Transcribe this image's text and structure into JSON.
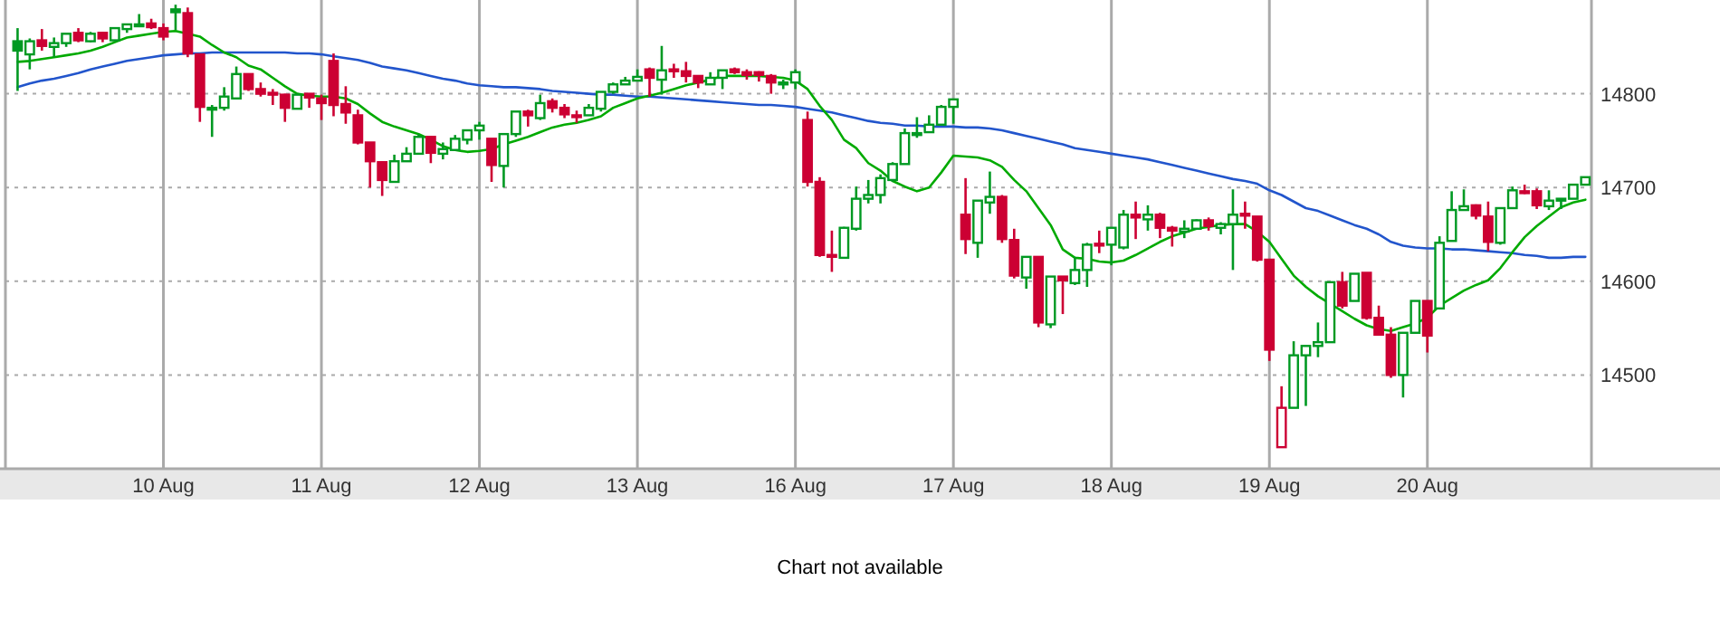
{
  "chart_data": {
    "type": "candlestick",
    "categories": [
      null,
      null,
      null,
      null,
      null,
      null,
      null,
      null,
      null,
      null,
      null,
      null,
      "10 Aug",
      null,
      null,
      null,
      null,
      null,
      null,
      null,
      null,
      null,
      null,
      null,
      null,
      "11 Aug",
      null,
      null,
      null,
      null,
      null,
      null,
      null,
      null,
      null,
      null,
      null,
      null,
      "12 Aug",
      null,
      null,
      null,
      null,
      null,
      null,
      null,
      null,
      null,
      null,
      null,
      null,
      "13 Aug",
      null,
      null,
      null,
      null,
      null,
      null,
      null,
      null,
      null,
      null,
      null,
      null,
      "16 Aug",
      null,
      null,
      null,
      null,
      null,
      null,
      null,
      null,
      null,
      null,
      null,
      null,
      "17 Aug",
      null,
      null,
      null,
      null,
      null,
      null,
      null,
      null,
      null,
      null,
      null,
      null,
      "18 Aug",
      null,
      null,
      null,
      null,
      null,
      null,
      null,
      null,
      null,
      null,
      null,
      null,
      "19 Aug",
      null,
      null,
      null,
      null,
      null,
      null,
      null,
      null,
      null,
      null,
      null,
      null,
      "20 Aug",
      null,
      null,
      null,
      null,
      null,
      null,
      null,
      null,
      null,
      null,
      null,
      null,
      null
    ],
    "ohlc": [
      [
        14856,
        14870,
        14803,
        14846
      ],
      [
        14842,
        14859,
        14826,
        14856
      ],
      [
        14857,
        14869,
        14846,
        14851
      ],
      [
        14850,
        14860,
        14839,
        14854
      ],
      [
        14854,
        14864,
        14850,
        14864
      ],
      [
        14865,
        14870,
        14855,
        14857
      ],
      [
        14856,
        14866,
        14855,
        14864
      ],
      [
        14865,
        14866,
        14855,
        14859
      ],
      [
        14857,
        14870,
        14856,
        14870
      ],
      [
        14869,
        14874,
        14865,
        14874
      ],
      [
        14872,
        14885,
        14871,
        14874
      ],
      [
        14875,
        14880,
        14869,
        14871
      ],
      [
        14870,
        14875,
        14857,
        14861
      ],
      [
        14890,
        14895,
        14868,
        14887
      ],
      [
        14886,
        14892,
        14839,
        14843
      ],
      [
        14842,
        14842,
        14770,
        14786
      ],
      [
        14784,
        14788,
        14754,
        14785
      ],
      [
        14785,
        14807,
        14782,
        14797
      ],
      [
        14795,
        14829,
        14795,
        14821
      ],
      [
        14821,
        14821,
        14803,
        14805
      ],
      [
        14805,
        14812,
        14797,
        14800
      ],
      [
        14801,
        14805,
        14788,
        14799
      ],
      [
        14799,
        14800,
        14770,
        14785
      ],
      [
        14784,
        14800,
        14784,
        14799
      ],
      [
        14800,
        14800,
        14785,
        14796
      ],
      [
        14795,
        14799,
        14772,
        14790
      ],
      [
        14835,
        14843,
        14776,
        14788
      ],
      [
        14789,
        14808,
        14768,
        14780
      ],
      [
        14777,
        14783,
        14746,
        14748
      ],
      [
        14748,
        14748,
        14700,
        14728
      ],
      [
        14727,
        14728,
        14691,
        14708
      ],
      [
        14706,
        14735,
        14705,
        14728
      ],
      [
        14728,
        14743,
        14728,
        14736
      ],
      [
        14736,
        14757,
        14736,
        14754
      ],
      [
        14754,
        14755,
        14726,
        14737
      ],
      [
        14736,
        14748,
        14730,
        14741
      ],
      [
        14740,
        14756,
        14740,
        14752
      ],
      [
        14751,
        14761,
        14746,
        14761
      ],
      [
        14761,
        14770,
        14751,
        14766
      ],
      [
        14752,
        14752,
        14706,
        14724
      ],
      [
        14723,
        14757,
        14700,
        14757
      ],
      [
        14757,
        14781,
        14754,
        14781
      ],
      [
        14781,
        14783,
        14765,
        14777
      ],
      [
        14774,
        14799,
        14772,
        14790
      ],
      [
        14792,
        14795,
        14780,
        14785
      ],
      [
        14785,
        14789,
        14774,
        14778
      ],
      [
        14777,
        14782,
        14769,
        14776
      ],
      [
        14777,
        14789,
        14777,
        14785
      ],
      [
        14784,
        14802,
        14781,
        14802
      ],
      [
        14802,
        14812,
        14800,
        14810
      ],
      [
        14810,
        14818,
        14810,
        14814
      ],
      [
        14814,
        14826,
        14814,
        14818
      ],
      [
        14826,
        14828,
        14797,
        14817
      ],
      [
        14815,
        14851,
        14799,
        14825
      ],
      [
        14826,
        14832,
        14817,
        14824
      ],
      [
        14824,
        14834,
        14812,
        14819
      ],
      [
        14819,
        14819,
        14806,
        14812
      ],
      [
        14810,
        14823,
        14810,
        14817
      ],
      [
        14817,
        14825,
        14805,
        14825
      ],
      [
        14826,
        14828,
        14821,
        14823
      ],
      [
        14823,
        14826,
        14815,
        14820
      ],
      [
        14823,
        14824,
        14813,
        14820
      ],
      [
        14819,
        14821,
        14800,
        14812
      ],
      [
        14810,
        14815,
        14805,
        14812
      ],
      [
        14812,
        14826,
        14805,
        14823
      ],
      [
        14772,
        14781,
        14701,
        14706
      ],
      [
        14706,
        14711,
        14626,
        14628
      ],
      [
        14628,
        14654,
        14610,
        14627
      ],
      [
        14625,
        14658,
        14625,
        14657
      ],
      [
        14656,
        14701,
        14654,
        14688
      ],
      [
        14688,
        14708,
        14683,
        14692
      ],
      [
        14692,
        14714,
        14683,
        14710
      ],
      [
        14708,
        14727,
        14706,
        14725
      ],
      [
        14725,
        14763,
        14725,
        14758
      ],
      [
        14756,
        14775,
        14753,
        14758
      ],
      [
        14759,
        14777,
        14759,
        14767
      ],
      [
        14767,
        14788,
        14767,
        14786
      ],
      [
        14786,
        14794,
        14768,
        14794
      ],
      [
        14671,
        14710,
        14629,
        14645
      ],
      [
        14641,
        14686,
        14625,
        14686
      ],
      [
        14684,
        14717,
        14672,
        14690
      ],
      [
        14690,
        14692,
        14641,
        14645
      ],
      [
        14644,
        14656,
        14603,
        14606
      ],
      [
        14604,
        14626,
        14592,
        14626
      ],
      [
        14626,
        14626,
        14551,
        14556
      ],
      [
        14554,
        14605,
        14550,
        14605
      ],
      [
        14605,
        14605,
        14565,
        14601
      ],
      [
        14598,
        14626,
        14596,
        14612
      ],
      [
        14612,
        14641,
        14594,
        14639
      ],
      [
        14640,
        14654,
        14630,
        14639
      ],
      [
        14639,
        14657,
        14617,
        14657
      ],
      [
        14636,
        14676,
        14634,
        14671
      ],
      [
        14671,
        14685,
        14645,
        14668
      ],
      [
        14666,
        14681,
        14654,
        14671
      ],
      [
        14671,
        14673,
        14646,
        14657
      ],
      [
        14657,
        14659,
        14637,
        14654
      ],
      [
        14653,
        14665,
        14646,
        14656
      ],
      [
        14656,
        14666,
        14655,
        14665
      ],
      [
        14665,
        14668,
        14654,
        14659
      ],
      [
        14657,
        14663,
        14650,
        14661
      ],
      [
        14661,
        14698,
        14612,
        14671
      ],
      [
        14672,
        14685,
        14656,
        14670
      ],
      [
        14669,
        14669,
        14621,
        14623
      ],
      [
        14623,
        14623,
        14515,
        14527
      ],
      [
        14423,
        14488,
        14423,
        14465
      ],
      [
        14465,
        14536,
        14465,
        14521
      ],
      [
        14521,
        14531,
        14467,
        14531
      ],
      [
        14531,
        14556,
        14519,
        14535
      ],
      [
        14535,
        14599,
        14535,
        14599
      ],
      [
        14599,
        14610,
        14571,
        14574
      ],
      [
        14579,
        14608,
        14579,
        14608
      ],
      [
        14609,
        14609,
        14559,
        14561
      ],
      [
        14561,
        14574,
        14542,
        14543
      ],
      [
        14543,
        14551,
        14497,
        14500
      ],
      [
        14500,
        14545,
        14476,
        14545
      ],
      [
        14545,
        14579,
        14545,
        14579
      ],
      [
        14579,
        14579,
        14524,
        14542
      ],
      [
        14571,
        14648,
        14571,
        14641
      ],
      [
        14643,
        14696,
        14643,
        14676
      ],
      [
        14676,
        14698,
        14676,
        14680
      ],
      [
        14681,
        14682,
        14666,
        14670
      ],
      [
        14669,
        14685,
        14632,
        14642
      ],
      [
        14641,
        14678,
        14639,
        14678
      ],
      [
        14678,
        14701,
        14678,
        14697
      ],
      [
        14696,
        14703,
        14693,
        14694
      ],
      [
        14696,
        14699,
        14677,
        14681
      ],
      [
        14680,
        14697,
        14676,
        14686
      ],
      [
        14688,
        14688,
        14677,
        14686
      ],
      [
        14688,
        14703,
        14688,
        14703
      ],
      [
        14703,
        14711,
        14703,
        14711
      ]
    ],
    "colors": [
      "#009922",
      "#009922",
      "#cc0033",
      "#009922",
      "#009922",
      "#cc0033",
      "#009922",
      "#cc0033",
      "#009922",
      "#009922",
      "#009922",
      "#cc0033",
      "#cc0033",
      "#009922",
      "#cc0033",
      "#cc0033",
      "#009922",
      "#009922",
      "#009922",
      "#cc0033",
      "#cc0033",
      "#cc0033",
      "#cc0033",
      "#009922",
      "#cc0033",
      "#cc0033",
      "#cc0033",
      "#cc0033",
      "#cc0033",
      "#cc0033",
      "#cc0033",
      "#009922",
      "#009922",
      "#009922",
      "#cc0033",
      "#009922",
      "#009922",
      "#009922",
      "#009922",
      "#cc0033",
      "#009922",
      "#009922",
      "#cc0033",
      "#009922",
      "#cc0033",
      "#cc0033",
      "#cc0033",
      "#009922",
      "#009922",
      "#009922",
      "#009922",
      "#009922",
      "#cc0033",
      "#009922",
      "#cc0033",
      "#cc0033",
      "#cc0033",
      "#009922",
      "#009922",
      "#cc0033",
      "#cc0033",
      "#cc0033",
      "#cc0033",
      "#009922",
      "#009922",
      "#cc0033",
      "#cc0033",
      "#cc0033",
      "#009922",
      "#009922",
      "#009922",
      "#009922",
      "#009922",
      "#009922",
      "#009922",
      "#009922",
      "#009922",
      "#009922",
      "#cc0033",
      "#009922",
      "#009922",
      "#cc0033",
      "#cc0033",
      "#009922",
      "#cc0033",
      "#009922",
      "#cc0033",
      "#009922",
      "#009922",
      "#cc0033",
      "#009922",
      "#009922",
      "#cc0033",
      "#009922",
      "#cc0033",
      "#cc0033",
      "#009922",
      "#009922",
      "#cc0033",
      "#009922",
      "#009922",
      "#cc0033",
      "#cc0033",
      "#cc0033",
      "#cc0033",
      "#009922",
      "#009922",
      "#009922",
      "#009922",
      "#cc0033",
      "#009922",
      "#cc0033",
      "#cc0033",
      "#cc0033",
      "#009922",
      "#009922",
      "#cc0033",
      "#009922",
      "#009922",
      "#009922",
      "#cc0033",
      "#cc0033",
      "#009922",
      "#009922",
      "#cc0033",
      "#cc0033",
      "#009922",
      "#009922",
      "#009922",
      "#009922"
    ],
    "series": [
      {
        "type": "line",
        "color": "#2255cc",
        "values": [
          14807,
          14811,
          14814,
          14816,
          14819,
          14822,
          14826,
          14829,
          14832,
          14835,
          14837,
          14839,
          14841,
          14842,
          14843,
          14843,
          14844,
          14844,
          14844,
          14844,
          14844,
          14844,
          14844,
          14843,
          14843,
          14842,
          14840,
          14838,
          14836,
          14833,
          14829,
          14827,
          14825,
          14822,
          14819,
          14816,
          14814,
          14811,
          14809,
          14808,
          14807,
          14807,
          14806,
          14805,
          14803,
          14802,
          14801,
          14800,
          14799,
          14799,
          14798,
          14797,
          14797,
          14796,
          14795,
          14794,
          14793,
          14792,
          14791,
          14790,
          14789,
          14788,
          14788,
          14787,
          14786,
          14784,
          14782,
          14780,
          14777,
          14774,
          14771,
          14769,
          14768,
          14766,
          14766,
          14765,
          14765,
          14765,
          14764,
          14764,
          14763,
          14761,
          14758,
          14755,
          14752,
          14749,
          14746,
          14742,
          14740,
          14738,
          14736,
          14734,
          14732,
          14730,
          14727,
          14724,
          14721,
          14718,
          14715,
          14712,
          14709,
          14707,
          14704,
          14697,
          14692,
          14685,
          14678,
          14675,
          14670,
          14665,
          14660,
          14656,
          14650,
          14642,
          14638,
          14636,
          14635,
          14635,
          14634,
          14634,
          14633,
          14632,
          14631,
          14630,
          14628,
          14627,
          14625,
          14625,
          14626,
          14626
        ]
      },
      {
        "type": "line",
        "color": "#00aa00",
        "values": [
          14834,
          14835,
          14837,
          14839,
          14841,
          14843,
          14846,
          14850,
          14855,
          14860,
          14862,
          14864,
          14866,
          14867,
          14864,
          14861,
          14852,
          14844,
          14839,
          14830,
          14826,
          14817,
          14808,
          14800,
          14798,
          14797,
          14797,
          14795,
          14789,
          14779,
          14770,
          14765,
          14761,
          14757,
          14751,
          14744,
          14740,
          14738,
          14739,
          14741,
          14746,
          14750,
          14754,
          14759,
          14764,
          14767,
          14769,
          14772,
          14776,
          14785,
          14790,
          14795,
          14798,
          14801,
          14805,
          14809,
          14812,
          14815,
          14819,
          14819,
          14819,
          14819,
          14818,
          14817,
          14814,
          14805,
          14787,
          14772,
          14751,
          14742,
          14726,
          14718,
          14707,
          14701,
          14696,
          14700,
          14716,
          14734,
          14733,
          14732,
          14729,
          14722,
          14708,
          14696,
          14678,
          14660,
          14634,
          14625,
          14624,
          14621,
          14620,
          14622,
          14628,
          14635,
          14642,
          14648,
          14652,
          14656,
          14658,
          14660,
          14661,
          14661,
          14653,
          14642,
          14624,
          14606,
          14594,
          14584,
          14576,
          14568,
          14560,
          14553,
          14549,
          14547,
          14551,
          14555,
          14561,
          14574,
          14582,
          14590,
          14596,
          14601,
          14614,
          14631,
          14647,
          14659,
          14669,
          14679,
          14684,
          14687
        ]
      }
    ],
    "ylim": [
      14400,
      14900
    ],
    "yticks": [
      14500,
      14600,
      14700,
      14800
    ],
    "grid": true,
    "annotations": [
      "Chart not available"
    ]
  }
}
